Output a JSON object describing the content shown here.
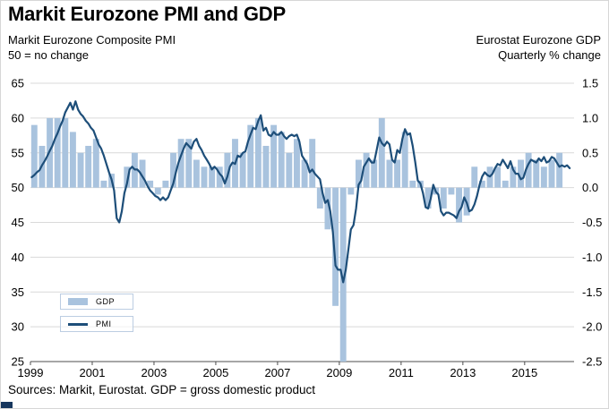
{
  "title": "Markit Eurozone PMI and GDP",
  "subtitle_left": {
    "line1": "Markit Eurozone Composite PMI",
    "line2": "50 = no change"
  },
  "subtitle_right": {
    "line1": "Eurostat Eurozone GDP",
    "line2": "Quarterly % change"
  },
  "footer": "Sources: Markit, Eurostat. GDP = gross domestic product",
  "legend": [
    {
      "label": "GDP",
      "type": "bar"
    },
    {
      "label": "PMI",
      "type": "line"
    }
  ],
  "colors": {
    "gdp_bar": "#a9c3de",
    "pmi_line": "#1d4e79",
    "grid": "#d9d9d9",
    "axis": "#4d4d4d",
    "text": "#000000"
  },
  "chart_data": {
    "type": "line+bar",
    "title": "Markit Eurozone PMI and GDP",
    "x_start_year": 1999,
    "x_end": 2016.6,
    "x_tick_years": [
      1999,
      2001,
      2003,
      2005,
      2007,
      2009,
      2011,
      2013,
      2015
    ],
    "left_axis": {
      "label": "Markit Eurozone Composite PMI (50 = no change)",
      "min": 25,
      "max": 65,
      "ticks": [
        65,
        60,
        55,
        50,
        45,
        40,
        35,
        30,
        25
      ]
    },
    "right_axis": {
      "label": "Eurostat Eurozone GDP quarterly % change",
      "min": -2.5,
      "max": 1.5,
      "ticks": [
        1.5,
        1.0,
        0.5,
        0.0,
        -0.5,
        -1.0,
        -1.5,
        -2.0,
        -2.5
      ]
    },
    "grid": true,
    "legend_position": "lower-left-inside",
    "series": [
      {
        "name": "GDP",
        "type": "bar",
        "axis": "right",
        "freq": "quarterly",
        "start": 1999,
        "values": [
          0.9,
          0.6,
          1.0,
          1.0,
          1.0,
          0.8,
          0.5,
          0.6,
          0.7,
          0.1,
          0.2,
          0.0,
          0.3,
          0.5,
          0.4,
          0.1,
          -0.1,
          0.1,
          0.5,
          0.7,
          0.7,
          0.4,
          0.3,
          0.3,
          0.3,
          0.5,
          0.7,
          0.5,
          0.9,
          1.0,
          0.6,
          0.9,
          0.8,
          0.5,
          0.7,
          0.4,
          0.7,
          -0.3,
          -0.6,
          -1.7,
          -2.5,
          -0.1,
          0.4,
          0.5,
          0.4,
          1.0,
          0.4,
          0.4,
          0.8,
          0.1,
          0.1,
          -0.3,
          -0.1,
          -0.3,
          -0.1,
          -0.5,
          -0.4,
          0.3,
          0.1,
          0.3,
          0.3,
          0.1,
          0.3,
          0.4,
          0.5,
          0.4,
          0.3,
          0.4,
          0.5
        ]
      },
      {
        "name": "PMI",
        "type": "line",
        "axis": "left",
        "freq": "monthly",
        "start": 1999,
        "values": [
          51.5,
          51.8,
          52.2,
          52.5,
          53.2,
          53.8,
          54.5,
          55.3,
          56.0,
          57.0,
          57.8,
          58.8,
          59.6,
          60.8,
          61.5,
          62.2,
          61.2,
          62.4,
          61.2,
          60.6,
          60.2,
          59.6,
          59.2,
          58.6,
          58.2,
          57.2,
          56.2,
          55.6,
          54.6,
          53.4,
          52.2,
          51.2,
          49.6,
          45.6,
          45.0,
          46.6,
          49.2,
          50.6,
          52.6,
          53.0,
          52.6,
          52.6,
          52.2,
          51.6,
          51.0,
          50.2,
          49.6,
          49.2,
          48.8,
          48.6,
          48.2,
          48.6,
          48.2,
          48.6,
          49.6,
          50.6,
          52.2,
          53.6,
          54.6,
          55.6,
          56.4,
          56.0,
          55.6,
          56.6,
          57.0,
          56.0,
          55.4,
          54.6,
          54.0,
          53.4,
          52.6,
          53.0,
          52.6,
          52.0,
          51.6,
          50.6,
          51.6,
          53.0,
          53.6,
          53.4,
          54.6,
          54.4,
          55.0,
          55.2,
          56.6,
          57.6,
          58.6,
          58.4,
          59.6,
          60.4,
          58.2,
          58.6,
          57.6,
          57.4,
          58.0,
          57.6,
          57.6,
          58.0,
          57.4,
          57.0,
          57.4,
          57.6,
          57.4,
          57.6,
          56.6,
          54.6,
          54.0,
          53.4,
          52.2,
          52.6,
          52.0,
          51.6,
          51.2,
          49.2,
          47.8,
          48.2,
          46.6,
          43.6,
          38.8,
          38.2,
          38.2,
          36.4,
          38.2,
          41.0,
          44.0,
          44.6,
          47.0,
          50.4,
          51.0,
          53.0,
          53.6,
          54.2,
          53.6,
          53.6,
          55.4,
          57.2,
          56.4,
          56.0,
          56.6,
          56.2,
          54.0,
          53.6,
          55.4,
          55.0,
          57.0,
          58.4,
          57.6,
          57.8,
          56.0,
          53.6,
          51.0,
          50.6,
          49.2,
          47.2,
          47.0,
          48.4,
          50.4,
          49.4,
          49.0,
          46.6,
          46.0,
          46.4,
          46.4,
          46.2,
          46.0,
          45.6,
          46.6,
          47.2,
          48.6,
          47.8,
          46.6,
          46.8,
          47.6,
          48.8,
          50.4,
          51.6,
          52.2,
          51.8,
          51.6,
          52.0,
          52.8,
          53.4,
          53.2,
          54.0,
          53.4,
          52.8,
          53.8,
          52.6,
          52.0,
          52.0,
          51.2,
          51.4,
          52.6,
          53.4,
          54.0,
          53.8,
          53.6,
          54.2,
          53.8,
          54.4,
          53.6,
          53.8,
          54.4,
          54.2,
          53.6,
          53.0,
          53.2,
          53.0,
          53.2,
          52.8
        ]
      }
    ]
  }
}
